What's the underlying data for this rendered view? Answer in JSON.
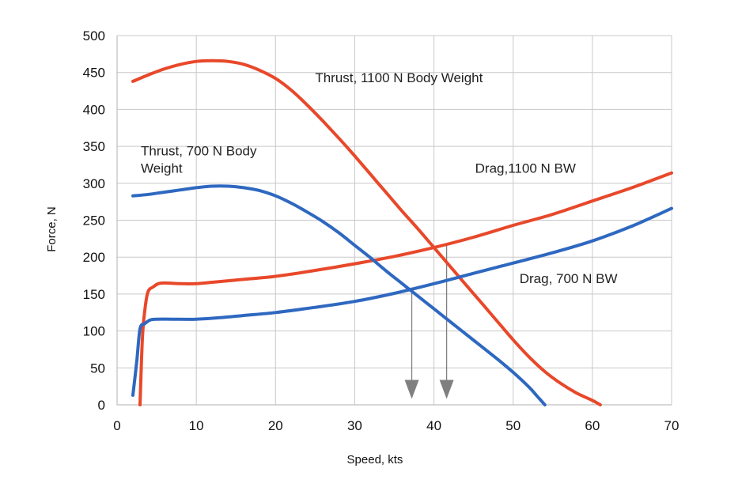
{
  "chart_data": {
    "type": "line",
    "title": "",
    "xlabel": "Speed, kts",
    "ylabel": "Force, N",
    "xlim": [
      0,
      70
    ],
    "ylim": [
      0,
      500
    ],
    "xticks": [
      0,
      10,
      20,
      30,
      40,
      50,
      60,
      70
    ],
    "yticks": [
      0,
      50,
      100,
      150,
      200,
      250,
      300,
      350,
      400,
      450,
      500
    ],
    "grid": true,
    "legend": "none",
    "series": [
      {
        "name": "Thrust, 1100 N Body Weight",
        "color": "#e8482a",
        "points": [
          [
            2,
            438
          ],
          [
            4,
            447
          ],
          [
            6,
            455
          ],
          [
            8,
            461
          ],
          [
            10,
            465
          ],
          [
            12,
            466
          ],
          [
            14,
            465
          ],
          [
            16,
            461
          ],
          [
            18,
            453
          ],
          [
            20,
            442
          ],
          [
            22,
            426
          ],
          [
            24,
            406
          ],
          [
            26,
            384
          ],
          [
            28,
            361
          ],
          [
            30,
            337
          ],
          [
            32,
            312
          ],
          [
            34,
            287
          ],
          [
            36,
            262
          ],
          [
            38,
            238
          ],
          [
            40,
            213
          ],
          [
            42,
            188
          ],
          [
            44,
            163
          ],
          [
            46,
            138
          ],
          [
            48,
            113
          ],
          [
            50,
            88
          ],
          [
            52,
            65
          ],
          [
            54,
            45
          ],
          [
            56,
            29
          ],
          [
            58,
            16
          ],
          [
            60,
            6
          ],
          [
            61,
            0
          ]
        ]
      },
      {
        "name": "Drag,1100 N BW",
        "color": "#e8482a",
        "points": [
          [
            2.9,
            0
          ],
          [
            3.2,
            90
          ],
          [
            3.5,
            128
          ],
          [
            3.9,
            153
          ],
          [
            4.6,
            160
          ],
          [
            5.2,
            164
          ],
          [
            6,
            165
          ],
          [
            8,
            164
          ],
          [
            10,
            164
          ],
          [
            12,
            166
          ],
          [
            15,
            169
          ],
          [
            20,
            174
          ],
          [
            25,
            182
          ],
          [
            30,
            191
          ],
          [
            35,
            201
          ],
          [
            40,
            213
          ],
          [
            45,
            227
          ],
          [
            50,
            243
          ],
          [
            55,
            258
          ],
          [
            60,
            276
          ],
          [
            65,
            294
          ],
          [
            70,
            314
          ]
        ]
      },
      {
        "name": "Thrust, 700 N Body Weight",
        "color": "#2e68c0",
        "points": [
          [
            2,
            283
          ],
          [
            4,
            285
          ],
          [
            6,
            288
          ],
          [
            8,
            291
          ],
          [
            10,
            294
          ],
          [
            12,
            296
          ],
          [
            14,
            296
          ],
          [
            16,
            294
          ],
          [
            18,
            290
          ],
          [
            20,
            283
          ],
          [
            22,
            273
          ],
          [
            24,
            261
          ],
          [
            26,
            248
          ],
          [
            28,
            233
          ],
          [
            30,
            216
          ],
          [
            32,
            199
          ],
          [
            34,
            181
          ],
          [
            36,
            164
          ],
          [
            38,
            147
          ],
          [
            40,
            130
          ],
          [
            42,
            113
          ],
          [
            44,
            96
          ],
          [
            46,
            79
          ],
          [
            48,
            62
          ],
          [
            50,
            44
          ],
          [
            52,
            24
          ],
          [
            53,
            12
          ],
          [
            54,
            0
          ]
        ]
      },
      {
        "name": "Drag, 700 N BW",
        "color": "#2e68c0",
        "points": [
          [
            2,
            13
          ],
          [
            2.5,
            60
          ],
          [
            2.9,
            103
          ],
          [
            3.5,
            110
          ],
          [
            4.2,
            115
          ],
          [
            5,
            116
          ],
          [
            7,
            116
          ],
          [
            10,
            116
          ],
          [
            13,
            118
          ],
          [
            16,
            121
          ],
          [
            20,
            125
          ],
          [
            25,
            132
          ],
          [
            30,
            140
          ],
          [
            35,
            151
          ],
          [
            40,
            164
          ],
          [
            45,
            178
          ],
          [
            50,
            192
          ],
          [
            55,
            206
          ],
          [
            60,
            222
          ],
          [
            65,
            242
          ],
          [
            70,
            266
          ]
        ]
      }
    ],
    "annotations": [
      {
        "lines": [
          "Thrust, 1100 N Body Weight"
        ],
        "x": 25,
        "y": 437
      },
      {
        "lines": [
          "Thrust, 700 N Body",
          "Weight"
        ],
        "x": 3,
        "y": 338
      },
      {
        "lines": [
          "Drag,1100 N BW"
        ],
        "x": 45.2,
        "y": 314
      },
      {
        "lines": [
          "Drag, 700 N BW"
        ],
        "x": 50.8,
        "y": 165
      }
    ],
    "markers": [
      {
        "x": 37.2,
        "y_from": 159,
        "y_to": 8,
        "color": "#7f7f7f"
      },
      {
        "x": 41.6,
        "y_from": 217,
        "y_to": 8,
        "color": "#7f7f7f"
      }
    ]
  }
}
